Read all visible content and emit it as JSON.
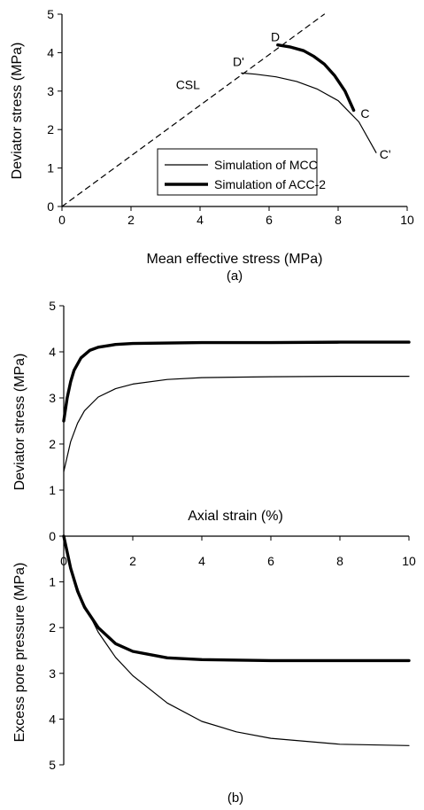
{
  "chart_data": [
    {
      "type": "line",
      "xlabel": "Mean effective stress  (MPa)",
      "ylabel": "Deviator stress  (MPa)",
      "xlim": [
        0,
        10
      ],
      "ylim": [
        0,
        5
      ],
      "x_ticks": [
        "0",
        "2",
        "4",
        "6",
        "8",
        "10"
      ],
      "y_ticks": [
        "0",
        "1",
        "2",
        "3",
        "4",
        "5"
      ],
      "caption": "(a)",
      "legend": {
        "position": "bottom-right",
        "entries": [
          "Simulation of MCC",
          "Simulation of ACC-2"
        ]
      },
      "annotations": [
        {
          "text": "CSL",
          "x": 3.3,
          "y": 3.05
        },
        {
          "text": "D'",
          "x": 4.95,
          "y": 3.65
        },
        {
          "text": "D",
          "x": 6.05,
          "y": 4.3
        },
        {
          "text": "C",
          "x": 8.65,
          "y": 2.3
        },
        {
          "text": "C'",
          "x": 9.2,
          "y": 1.25
        }
      ],
      "series": [
        {
          "name": "CSL",
          "style": "dashed",
          "x": [
            0,
            7.6
          ],
          "y": [
            0,
            5.0
          ]
        },
        {
          "name": "Simulation of MCC",
          "style": "thin",
          "x": [
            9.1,
            8.6,
            8.0,
            7.4,
            6.8,
            6.2,
            5.6,
            5.2
          ],
          "y": [
            1.4,
            2.2,
            2.75,
            3.05,
            3.25,
            3.37,
            3.44,
            3.47
          ]
        },
        {
          "name": "Simulation of ACC-2",
          "style": "thick",
          "x": [
            8.45,
            8.2,
            7.9,
            7.6,
            7.3,
            7.0,
            6.6,
            6.25
          ],
          "y": [
            2.5,
            3.0,
            3.4,
            3.7,
            3.9,
            4.05,
            4.15,
            4.2
          ]
        }
      ]
    },
    {
      "type": "line",
      "xlabel": "Axial strain (%)",
      "ylabel_top": "Deviator stress  (MPa)",
      "ylabel_bottom": "Excess pore pressure (MPa)",
      "xlim": [
        0,
        10
      ],
      "ylim_top": [
        0,
        5
      ],
      "ylim_bottom": [
        0,
        5
      ],
      "x_ticks": [
        "0",
        "2",
        "4",
        "6",
        "8",
        "10"
      ],
      "y_ticks_top": [
        "0",
        "1",
        "2",
        "3",
        "4",
        "5"
      ],
      "y_ticks_bottom": [
        "1",
        "2",
        "3",
        "4",
        "5"
      ],
      "caption": "(b)",
      "series_top": [
        {
          "name": "Simulation of ACC-2",
          "style": "thick",
          "x": [
            0,
            0.1,
            0.2,
            0.3,
            0.5,
            0.75,
            1,
            1.5,
            2,
            3,
            4,
            6,
            8,
            10
          ],
          "y": [
            2.5,
            3.0,
            3.35,
            3.6,
            3.87,
            4.03,
            4.1,
            4.16,
            4.18,
            4.19,
            4.2,
            4.2,
            4.21,
            4.21
          ]
        },
        {
          "name": "Simulation of MCC",
          "style": "thin",
          "x": [
            0,
            0.2,
            0.4,
            0.6,
            1,
            1.5,
            2,
            3,
            4,
            6,
            8,
            10
          ],
          "y": [
            1.4,
            2.05,
            2.45,
            2.72,
            3.02,
            3.2,
            3.3,
            3.4,
            3.44,
            3.46,
            3.47,
            3.47
          ]
        }
      ],
      "series_bottom": [
        {
          "name": "Simulation of ACC-2",
          "style": "thick",
          "x": [
            0,
            0.2,
            0.4,
            0.6,
            1,
            1.5,
            2,
            3,
            4,
            6,
            8,
            10
          ],
          "y": [
            0,
            0.7,
            1.2,
            1.55,
            2.0,
            2.35,
            2.52,
            2.66,
            2.7,
            2.72,
            2.72,
            2.72
          ]
        },
        {
          "name": "Simulation of MCC",
          "style": "thin",
          "x": [
            0,
            0.25,
            0.5,
            1,
            1.5,
            2,
            3,
            4,
            5,
            6,
            8,
            10
          ],
          "y": [
            0,
            0.8,
            1.35,
            2.1,
            2.65,
            3.05,
            3.65,
            4.05,
            4.28,
            4.42,
            4.55,
            4.58
          ]
        }
      ]
    }
  ]
}
